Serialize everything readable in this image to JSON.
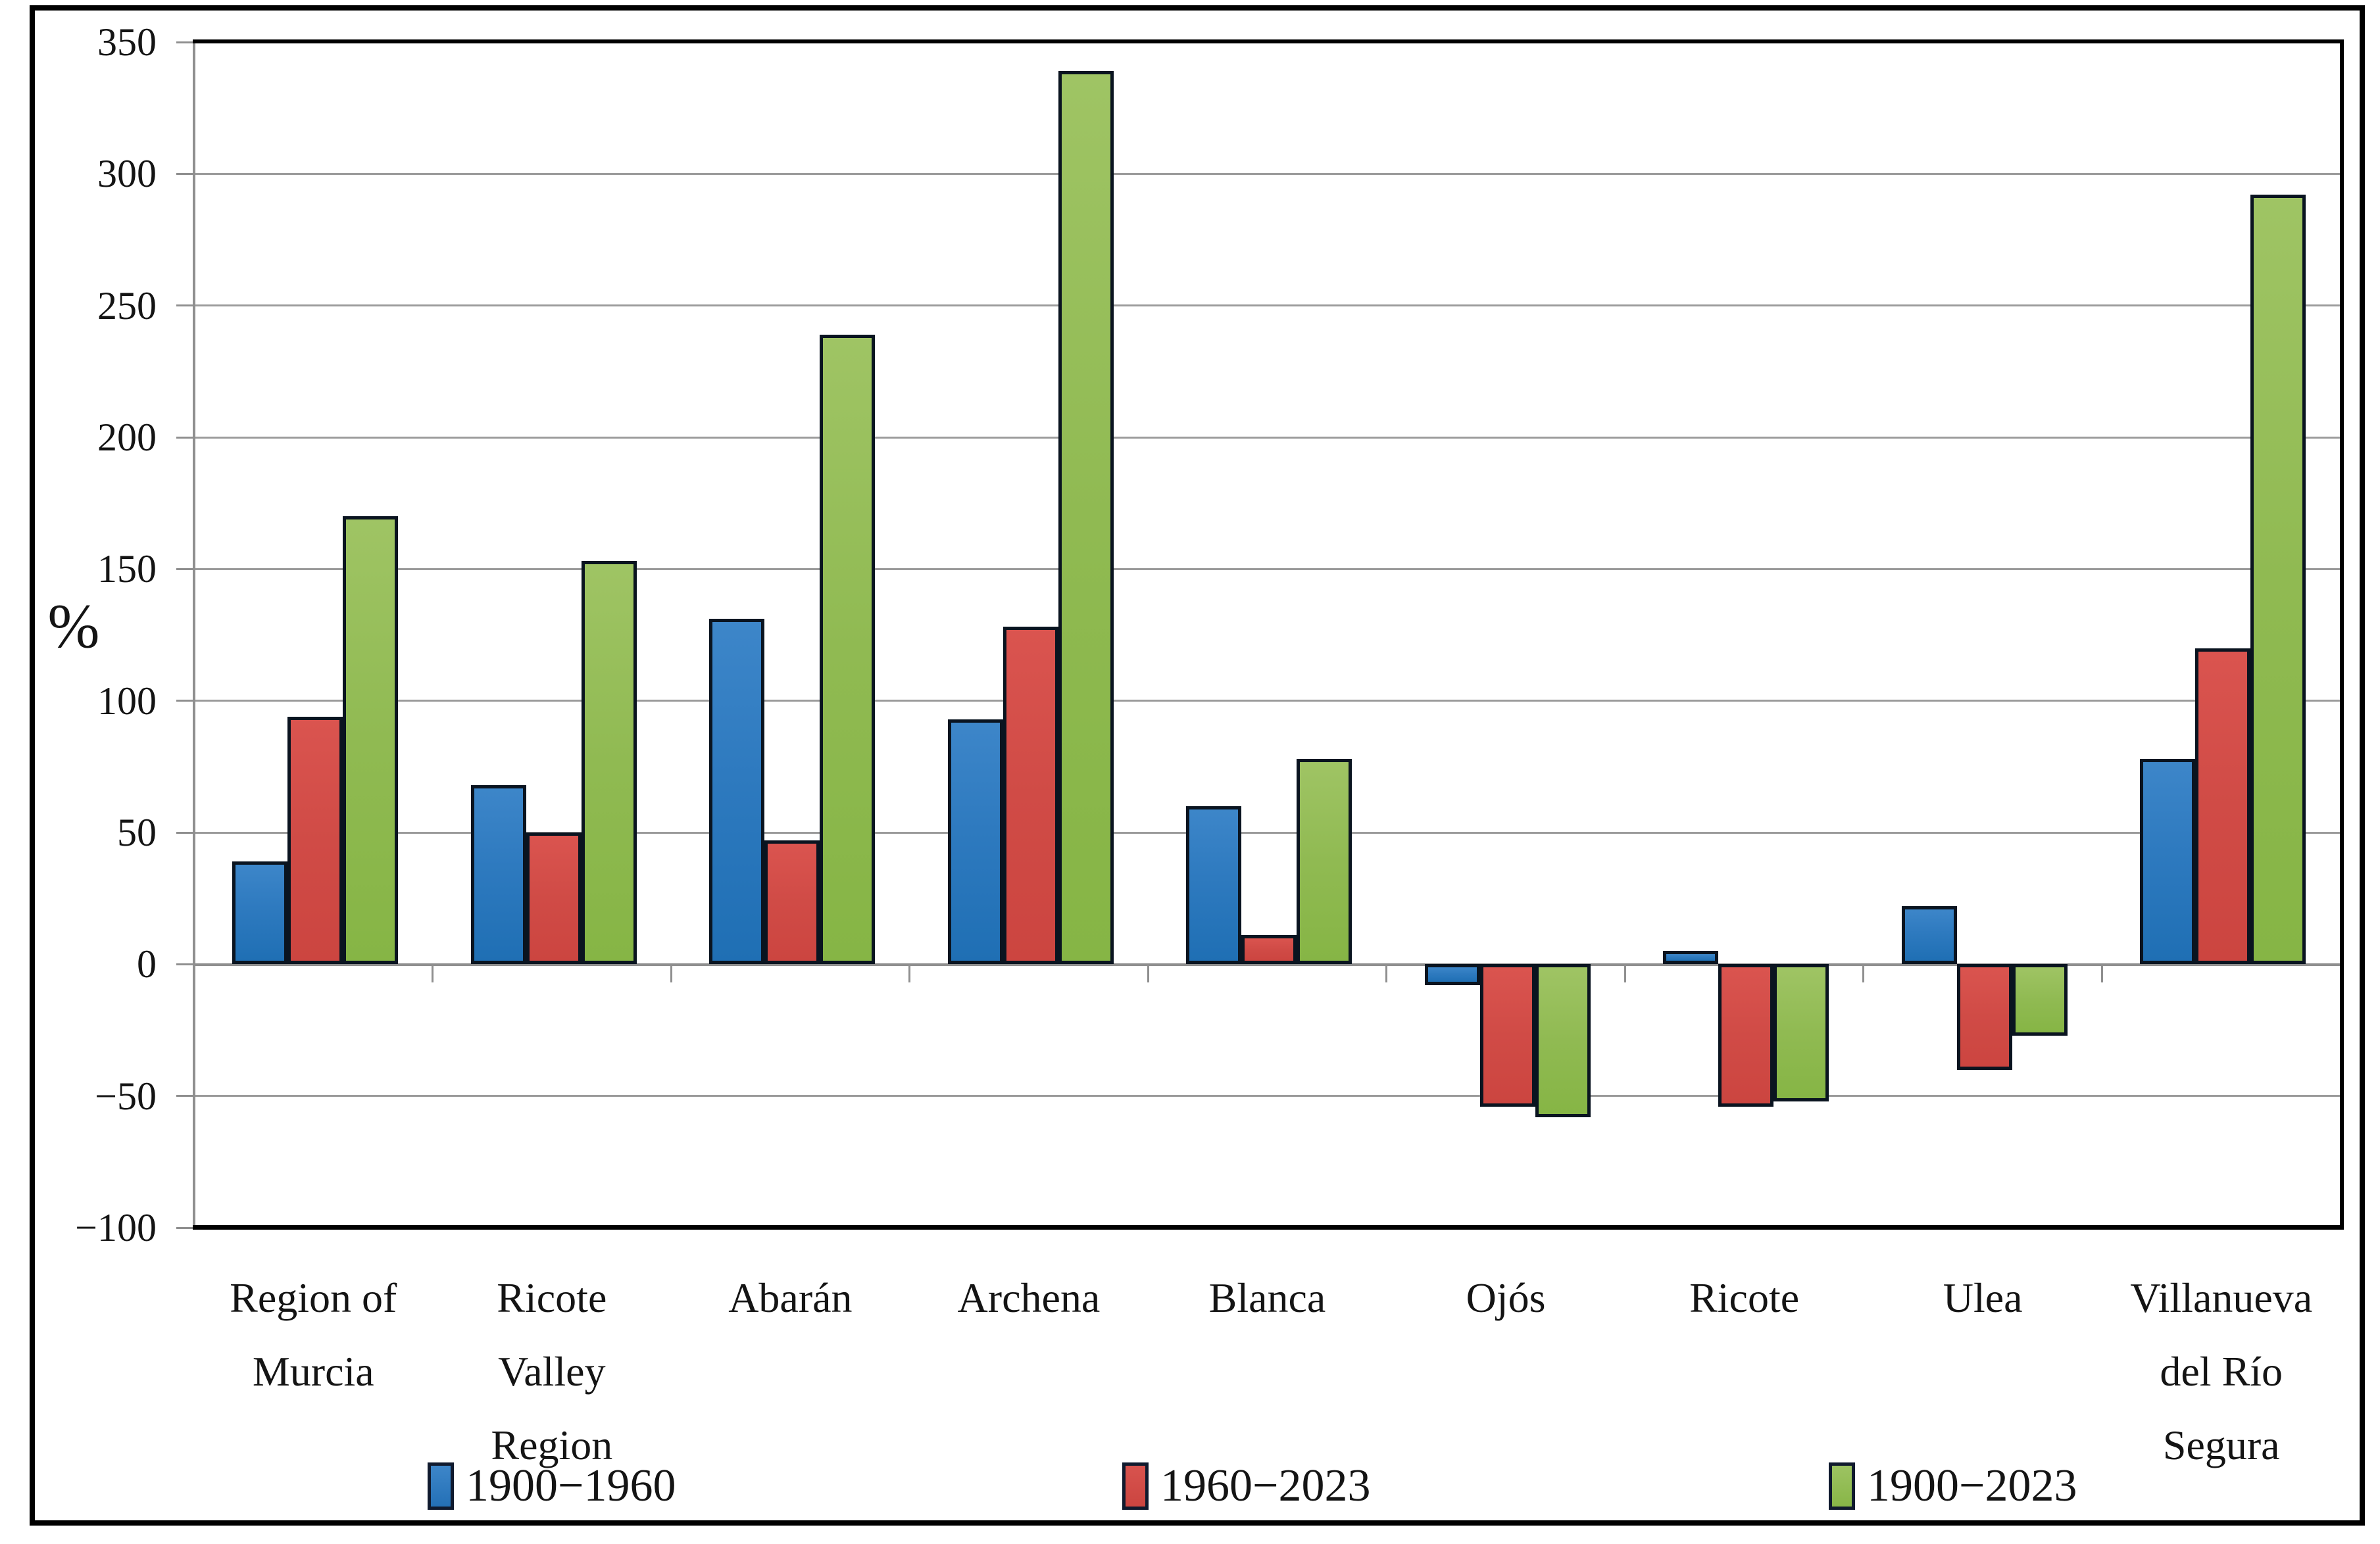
{
  "figure": {
    "ylabel": "%"
  },
  "chart_data": {
    "type": "bar",
    "title": "",
    "xlabel": "",
    "ylabel": "%",
    "ylim": [
      -100,
      350
    ],
    "ytick_step": 50,
    "ytick_labels": [
      "350",
      "300",
      "250",
      "200",
      "150",
      "100",
      "50",
      "0",
      "−50",
      "−100"
    ],
    "grid": true,
    "legend_position": "bottom",
    "categories": [
      "Region of Murcia",
      "Ricote Valley Region",
      "Abarán",
      "Archena",
      "Blanca",
      "Ojós",
      "Ricote",
      "Ulea",
      "Villanueva del Río Segura"
    ],
    "category_lines": [
      [
        "Region of",
        "Murcia"
      ],
      [
        "Ricote",
        "Valley",
        "Region"
      ],
      [
        "Abarán"
      ],
      [
        "Archena"
      ],
      [
        "Blanca"
      ],
      [
        "Ojós"
      ],
      [
        "Ricote"
      ],
      [
        "Ulea"
      ],
      [
        "Villanueva",
        "del Río",
        "Segura"
      ]
    ],
    "series": [
      {
        "name": "1900−1960",
        "color": "#2E7ABF",
        "values": [
          39,
          68,
          131,
          93,
          60,
          -8,
          5,
          22,
          78
        ]
      },
      {
        "name": "1960−2023",
        "color": "#D04B46",
        "values": [
          94,
          50,
          47,
          128,
          11,
          -54,
          -54,
          -40,
          120
        ]
      },
      {
        "name": "1900−2023",
        "color": "#8FBA4E",
        "values": [
          170,
          153,
          239,
          339,
          78,
          -58,
          -52,
          -27,
          292
        ]
      }
    ]
  },
  "colors": {
    "gridline": "#9B9B9B",
    "axis": "#8F8F8F",
    "bar_outline": "#0A1420",
    "figure_border": "#000000",
    "background": "#FFFFFF"
  }
}
